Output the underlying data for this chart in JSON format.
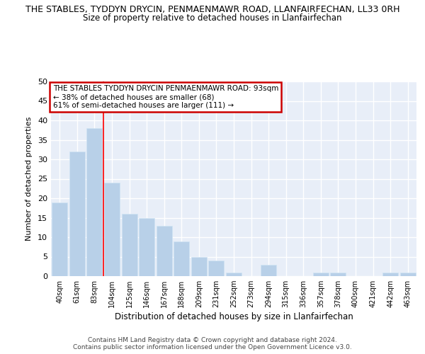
{
  "title": "THE STABLES, TYDDYN DRYCIN, PENMAENMAWR ROAD, LLANFAIRFECHAN, LL33 0RH",
  "subtitle": "Size of property relative to detached houses in Llanfairfechan",
  "xlabel": "Distribution of detached houses by size in Llanfairfechan",
  "ylabel": "Number of detached properties",
  "categories": [
    "40sqm",
    "61sqm",
    "83sqm",
    "104sqm",
    "125sqm",
    "146sqm",
    "167sqm",
    "188sqm",
    "209sqm",
    "231sqm",
    "252sqm",
    "273sqm",
    "294sqm",
    "315sqm",
    "336sqm",
    "357sqm",
    "378sqm",
    "400sqm",
    "421sqm",
    "442sqm",
    "463sqm"
  ],
  "values": [
    19,
    32,
    38,
    24,
    16,
    15,
    13,
    9,
    5,
    4,
    1,
    0,
    3,
    0,
    0,
    1,
    1,
    0,
    0,
    1,
    1
  ],
  "bar_color": "#b8d0e8",
  "bar_edge_color": "#d0e4f4",
  "background_color": "#e8eef8",
  "fig_background": "#ffffff",
  "grid_color": "#ffffff",
  "red_line_index": 2,
  "annotation_title": "THE STABLES TYDDYN DRYCIN PENMAENMAWR ROAD: 93sqm",
  "annotation_line2": "← 38% of detached houses are smaller (68)",
  "annotation_line3": "61% of semi-detached houses are larger (111) →",
  "annotation_box_color": "#ffffff",
  "annotation_box_edge": "#cc0000",
  "footer_line1": "Contains HM Land Registry data © Crown copyright and database right 2024.",
  "footer_line2": "Contains public sector information licensed under the Open Government Licence v3.0.",
  "ylim": [
    0,
    50
  ],
  "yticks": [
    0,
    5,
    10,
    15,
    20,
    25,
    30,
    35,
    40,
    45,
    50
  ]
}
